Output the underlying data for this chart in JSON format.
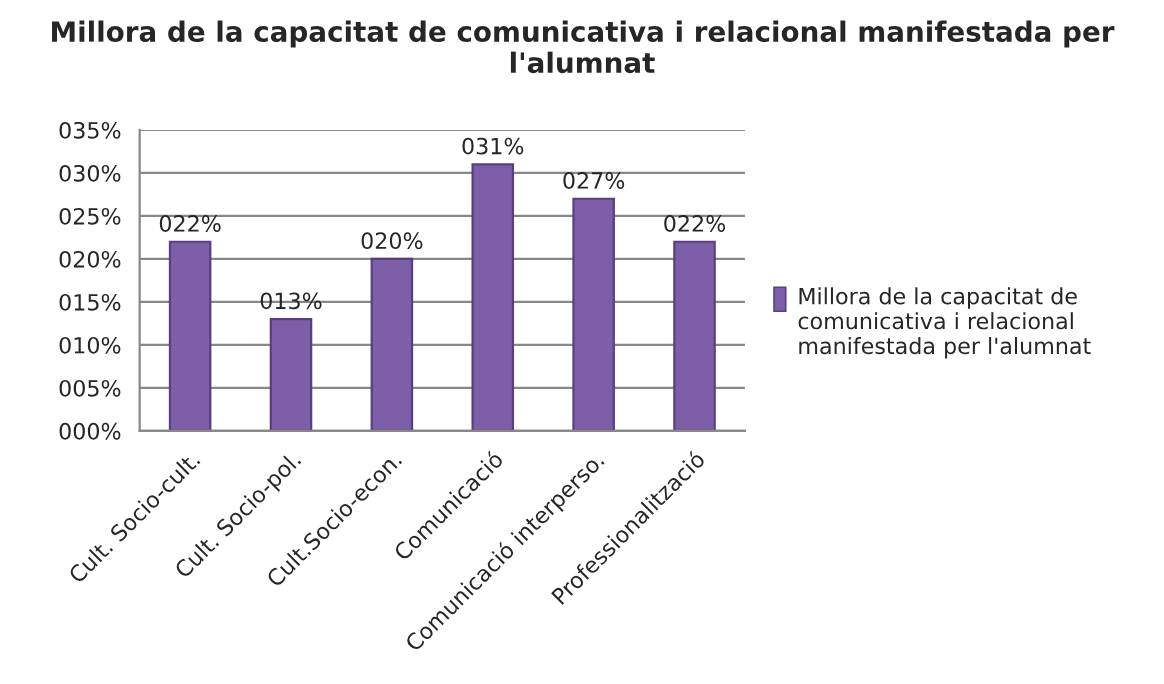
{
  "chart_data": {
    "type": "bar",
    "title": "Millora de la capacitat de comunicativa i relacional manifestada per l'alumnat",
    "categories": [
      "Cult. Socio-cult.",
      "Cult. Socio-pol.",
      "Cult.Socio-econ.",
      "Comunicació",
      "Comunicació interperso.",
      "Professionalització"
    ],
    "series": [
      {
        "name": "Millora de la capacitat de comunicativa i relacional manifestada per l'alumnat",
        "color": "#7d5fa8",
        "values": [
          22,
          13,
          20,
          31,
          27,
          22
        ],
        "value_labels": [
          "022%",
          "013%",
          "020%",
          "031%",
          "027%",
          "022%"
        ]
      }
    ],
    "ylim": [
      0,
      35
    ],
    "yticks": [
      {
        "value": 0,
        "label": "000%"
      },
      {
        "value": 5,
        "label": "005%"
      },
      {
        "value": 10,
        "label": "010%"
      },
      {
        "value": 15,
        "label": "015%"
      },
      {
        "value": 20,
        "label": "020%"
      },
      {
        "value": 25,
        "label": "025%"
      },
      {
        "value": 30,
        "label": "030%"
      },
      {
        "value": 35,
        "label": "035%"
      }
    ],
    "grid": "y",
    "legend": "right"
  }
}
